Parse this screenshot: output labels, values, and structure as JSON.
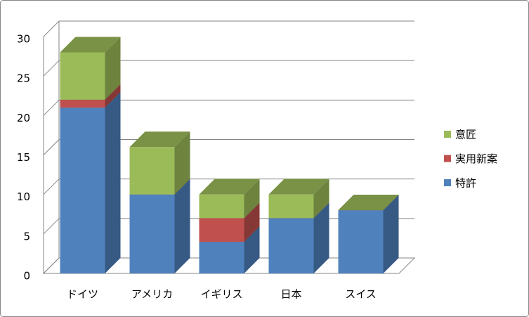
{
  "chart_data": {
    "type": "bar3d_stacked",
    "categories": [
      "ドイツ",
      "アメリカ",
      "イギリス",
      "日本",
      "スイス"
    ],
    "series": [
      {
        "name": "特許",
        "color": "#4f81bd",
        "values": [
          21,
          10,
          4,
          7,
          8
        ]
      },
      {
        "name": "実用新案",
        "color": "#c0504d",
        "values": [
          1,
          0,
          3,
          0,
          0
        ]
      },
      {
        "name": "意匠",
        "color": "#9bbb59",
        "values": [
          6,
          6,
          3,
          3,
          0
        ]
      }
    ],
    "ylim": [
      0,
      30
    ],
    "yticks": [
      0,
      5,
      10,
      15,
      20,
      25,
      30
    ],
    "grid": true,
    "legend": "right"
  }
}
